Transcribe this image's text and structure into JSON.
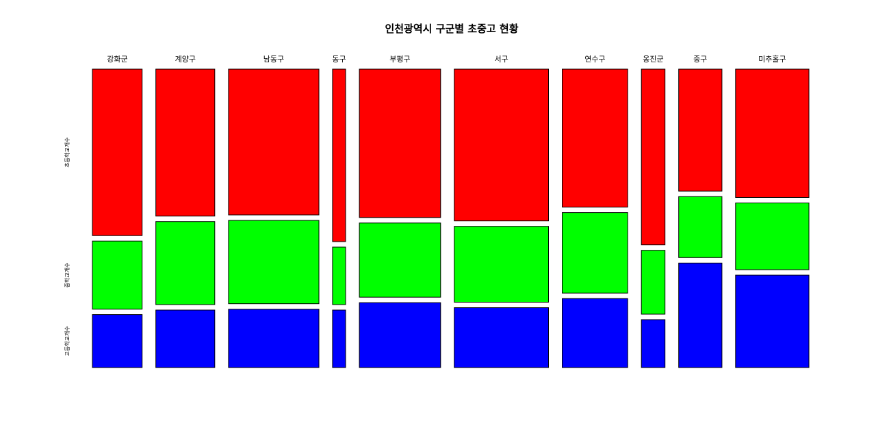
{
  "chart_data": {
    "type": "mosaic",
    "title": "인천광역시 구군별 초중고 현황",
    "categories": [
      "강화군",
      "계양구",
      "남동구",
      "동구",
      "부평구",
      "서구",
      "연수구",
      "옹진군",
      "중구",
      "미추홀구"
    ],
    "series": [
      {
        "name": "초등학교개수",
        "color": "#ff0000",
        "values": [
          22,
          23,
          35,
          6,
          32,
          38,
          24,
          11,
          14,
          25
        ]
      },
      {
        "name": "중학교개수",
        "color": "#00ff00",
        "values": [
          9,
          13,
          20,
          2,
          16,
          19,
          14,
          4,
          7,
          13
        ]
      },
      {
        "name": "고등학교개수",
        "color": "#0000ff",
        "values": [
          7,
          9,
          14,
          2,
          14,
          15,
          12,
          3,
          12,
          18
        ]
      }
    ]
  }
}
